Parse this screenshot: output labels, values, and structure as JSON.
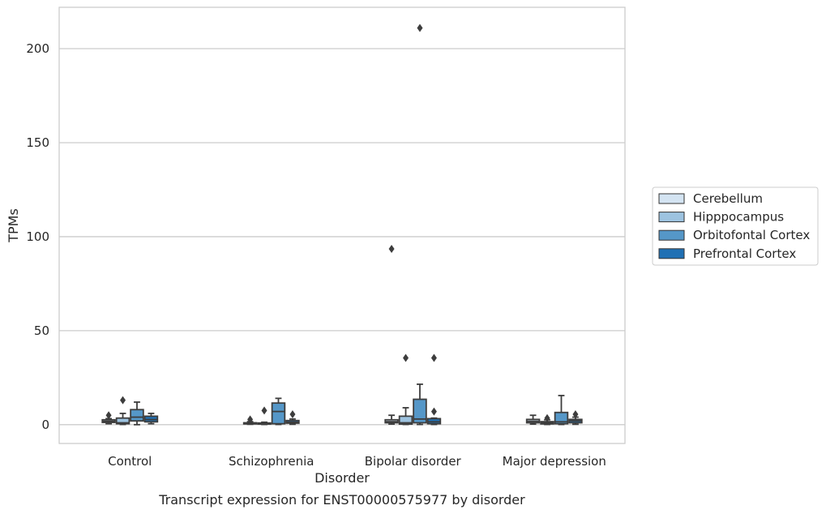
{
  "chart_data": {
    "type": "box",
    "caption": "Transcript expression for ENST00000575977 by disorder",
    "xlabel": "Disorder",
    "ylabel": "TPMs",
    "ylim": [
      -10,
      222
    ],
    "yticks": [
      0,
      50,
      100,
      150,
      200
    ],
    "grid": true,
    "legend_position": "right",
    "categories": [
      "Control",
      "Schizophrenia",
      "Bipolar disorder",
      "Major depression"
    ],
    "series": [
      {
        "name": "Cerebellum",
        "color": "#d4e4f2",
        "boxes": [
          {
            "whislo": 0.5,
            "q1": 1.2,
            "med": 1.8,
            "q3": 2.6,
            "whishi": 3.2,
            "fliers": [
              5.0
            ]
          },
          {
            "whislo": 0.2,
            "q1": 0.4,
            "med": 0.7,
            "q3": 1.0,
            "whishi": 1.6,
            "fliers": [
              2.8
            ]
          },
          {
            "whislo": 0.3,
            "q1": 1.0,
            "med": 1.6,
            "q3": 2.6,
            "whishi": 5.0,
            "fliers": [
              93.5
            ]
          },
          {
            "whislo": 0.3,
            "q1": 1.0,
            "med": 1.8,
            "q3": 2.8,
            "whishi": 5.0,
            "fliers": []
          }
        ]
      },
      {
        "name": "Hipppocampus",
        "color": "#9dc3e0",
        "boxes": [
          {
            "whislo": 0.1,
            "q1": 0.5,
            "med": 1.0,
            "q3": 3.5,
            "whishi": 6.0,
            "fliers": [
              13.0
            ]
          },
          {
            "whislo": 0.1,
            "q1": 0.3,
            "med": 0.5,
            "q3": 0.9,
            "whishi": 1.3,
            "fliers": [
              7.5
            ]
          },
          {
            "whislo": 0.1,
            "q1": 0.3,
            "med": 1.0,
            "q3": 4.5,
            "whishi": 9.0,
            "fliers": [
              35.5
            ]
          },
          {
            "whislo": 0.1,
            "q1": 0.4,
            "med": 1.0,
            "q3": 1.6,
            "whishi": 2.6,
            "fliers": [
              3.5
            ]
          }
        ]
      },
      {
        "name": "Orbitofontal Cortex",
        "color": "#5597c8",
        "boxes": [
          {
            "whislo": 0.0,
            "q1": 2.0,
            "med": 4.0,
            "q3": 8.0,
            "whishi": 12.0,
            "fliers": []
          },
          {
            "whislo": 0.1,
            "q1": 0.5,
            "med": 7.0,
            "q3": 11.5,
            "whishi": 14.0,
            "fliers": []
          },
          {
            "whislo": 0.1,
            "q1": 1.0,
            "med": 3.0,
            "q3": 13.5,
            "whishi": 21.5,
            "fliers": [
              211.0
            ]
          },
          {
            "whislo": 0.1,
            "q1": 0.5,
            "med": 1.5,
            "q3": 6.5,
            "whishi": 15.5,
            "fliers": []
          }
        ]
      },
      {
        "name": "Prefrontal Cortex",
        "color": "#2070b4",
        "boxes": [
          {
            "whislo": 0.5,
            "q1": 1.5,
            "med": 2.7,
            "q3": 4.5,
            "whishi": 6.0,
            "fliers": []
          },
          {
            "whislo": 0.2,
            "q1": 0.8,
            "med": 1.3,
            "q3": 2.2,
            "whishi": 3.0,
            "fliers": [
              5.5
            ]
          },
          {
            "whislo": 0.1,
            "q1": 0.5,
            "med": 1.5,
            "q3": 3.2,
            "whishi": 3.5,
            "fliers": [
              7.0,
              35.5
            ]
          },
          {
            "whislo": 0.2,
            "q1": 1.0,
            "med": 2.0,
            "q3": 2.8,
            "whishi": 4.0,
            "fliers": [
              5.5
            ]
          }
        ]
      }
    ]
  }
}
